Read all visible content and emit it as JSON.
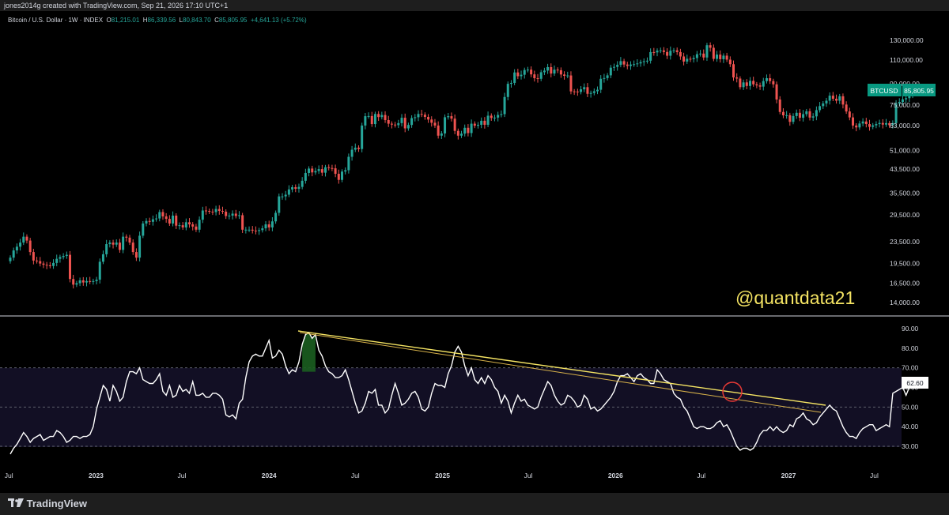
{
  "header": {
    "attribution": "jones2014g created with TradingView.com, Sep 21, 2026 17:10 UTC+1"
  },
  "symbol": {
    "title": "Bitcoin / U.S. Dollar · 1W · INDEX",
    "open_label": "O",
    "open": "81,215.01",
    "high_label": "H",
    "high": "86,339.56",
    "low_label": "L",
    "low": "80,843.70",
    "close_label": "C",
    "close": "85,805.95",
    "change": "+4,641.13 (+5.72%)"
  },
  "price_badge": {
    "symbol": "BTCUSD",
    "value": "85,805.95"
  },
  "rsi_badge": {
    "value": "62.60"
  },
  "watermark": "@quantdata21",
  "footer": {
    "brand": "TradingView"
  },
  "colors": {
    "up": "#26a69a",
    "down": "#ef5350",
    "rsi_line": "#ffffff",
    "trendline": "#f5e463",
    "circle": "#e53935",
    "badge": "#089981"
  },
  "chart_data": [
    {
      "type": "candlestick",
      "scale": "log",
      "price_ticks": [
        130000,
        110000,
        90000,
        75000,
        63000,
        51000,
        43500,
        35500,
        29500,
        23500,
        19500,
        16500,
        14000
      ],
      "price_tick_labels": [
        "130,000.00",
        "110,000.00",
        "90,000.00",
        "75,000.00",
        "63,000.00",
        "51,000.00",
        "43,500.00",
        "35,500.00",
        "29,500.00",
        "23,500.00",
        "19,500.00",
        "16,500.00",
        "14,000.00"
      ],
      "time_labels": [
        "Jul",
        "2023",
        "Jul",
        "2024",
        "Jul",
        "2025",
        "Jul",
        "2026",
        "Jul",
        "2027",
        "Jul"
      ],
      "time_label_dates": [
        "2022-07",
        "2023-01",
        "2023-07",
        "2024-01",
        "2024-07",
        "2025-01",
        "2025-07",
        "2026-01",
        "2026-07",
        "2027-01",
        "2027-07"
      ],
      "weekly_closes_from": "2022-07-04",
      "weekly_closes": [
        20500,
        21800,
        22500,
        23300,
        24500,
        23700,
        21500,
        20000,
        19900,
        19500,
        19300,
        19200,
        19100,
        19600,
        20300,
        20600,
        20800,
        21000,
        17100,
        16300,
        16500,
        16900,
        16600,
        16800,
        16700,
        16800,
        17000,
        19800,
        21100,
        23000,
        23300,
        22900,
        23300,
        21900,
        24500,
        24300,
        23300,
        21500,
        20500,
        24700,
        27400,
        28000,
        27800,
        28400,
        28600,
        30200,
        29100,
        28500,
        27400,
        29300,
        26900,
        27000,
        26500,
        27700,
        27200,
        26700,
        26000,
        28300,
        30600,
        30500,
        30300,
        30200,
        31000,
        30500,
        30300,
        29200,
        29300,
        29800,
        29200,
        29400,
        26000,
        26000,
        26000,
        25800,
        25700,
        25900,
        26300,
        27200,
        26500,
        27900,
        30000,
        34500,
        34500,
        35000,
        36600,
        37300,
        36800,
        37400,
        39400,
        42100,
        43700,
        42300,
        42800,
        43500,
        42200,
        44200,
        43900,
        43800,
        41800,
        39700,
        42600,
        43100,
        48300,
        51300,
        52200,
        51600,
        63000,
        68200,
        68300,
        63800,
        69500,
        67700,
        68900,
        66000,
        64000,
        63500,
        63200,
        64300,
        67300,
        61500,
        63300,
        67100,
        67600,
        69500,
        69100,
        67800,
        66300,
        64500,
        63000,
        57800,
        58900,
        67600,
        68200,
        66800,
        60200,
        57800,
        58800,
        61800,
        59100,
        64000,
        62900,
        63400,
        65600,
        63400,
        68500,
        67200,
        67400,
        68900,
        69400,
        80300,
        89800,
        90500,
        98900,
        95800,
        97000,
        101000,
        101300,
        97300,
        94200,
        93700,
        99100,
        100500,
        103500,
        98000,
        101300,
        100800,
        97200,
        96100,
        96400,
        84200,
        84100,
        83800,
        85700,
        87300,
        82500,
        83100,
        84300,
        85400,
        93700,
        94300,
        96500,
        103000,
        103700,
        105500,
        108900,
        105800,
        104500,
        105800,
        106100,
        106800,
        108000,
        108800,
        109300,
        117600,
        117300,
        119000,
        119300,
        117700,
        114000,
        119000,
        119400,
        117600,
        113300,
        108500,
        111100,
        110700,
        111800,
        115500,
        116100,
        112300,
        124700,
        122000,
        111000,
        115100,
        110700,
        114100,
        110300,
        106100,
        94800,
        93900,
        87300,
        90900,
        88200,
        92100,
        89400,
        88600,
        87700,
        91900,
        94200,
        91900,
        89400,
        78600,
        70700,
        68700,
        68800,
        65000,
        68300,
        70200,
        67300,
        69400,
        71100,
        67400,
        68100,
        71800,
        74300,
        76000,
        77800,
        81200,
        79100,
        77800,
        80800,
        75300,
        71000,
        67500,
        63000,
        62000,
        64100,
        65200,
        63800,
        62300,
        63100,
        63800,
        64400,
        63500,
        64300,
        63200,
        64300,
        76000,
        77000,
        78700,
        79500,
        81200,
        85806
      ]
    },
    {
      "type": "line",
      "name": "RSI",
      "y_ticks": [
        90,
        80,
        70,
        60,
        50,
        40,
        30
      ],
      "y_tick_labels": [
        "90.00",
        "80.00",
        "70.00",
        "60.00",
        "50.00",
        "40.00",
        "30.00"
      ],
      "bands": {
        "upper": 70,
        "middle": 50,
        "lower": 30
      },
      "last_value": 62.6,
      "values": [
        26,
        29,
        31,
        34,
        37,
        35,
        32,
        34,
        35,
        36,
        33,
        34,
        35,
        35,
        38,
        37,
        35,
        32,
        33,
        35,
        35,
        34,
        35,
        35,
        36,
        40,
        49,
        55,
        61,
        59,
        53,
        61,
        58,
        53,
        55,
        63,
        68,
        68,
        67,
        70,
        64,
        63,
        62,
        62,
        64,
        67,
        58,
        56,
        61,
        55,
        56,
        61,
        58,
        59,
        57,
        63,
        56,
        56,
        57,
        55,
        55,
        57,
        57,
        56,
        54,
        46,
        45,
        46,
        44,
        52,
        54,
        65,
        73,
        76,
        77,
        76,
        76,
        80,
        84,
        75,
        76,
        79,
        77,
        71,
        67,
        69,
        68,
        73,
        82,
        87,
        88,
        85,
        87,
        79,
        76,
        71,
        68,
        67,
        65,
        65,
        66,
        69,
        64,
        58,
        52,
        47,
        48,
        52,
        58,
        57,
        59,
        51,
        51,
        47,
        49,
        56,
        62,
        57,
        51,
        52,
        54,
        57,
        58,
        55,
        49,
        48,
        50,
        57,
        62,
        61,
        61,
        60,
        67,
        71,
        78,
        81,
        78,
        71,
        66,
        70,
        64,
        62,
        65,
        62,
        66,
        64,
        60,
        58,
        52,
        56,
        53,
        47,
        52,
        56,
        53,
        54,
        51,
        50,
        49,
        50,
        55,
        59,
        63,
        61,
        56,
        53,
        51,
        52,
        56,
        55,
        53,
        50,
        51,
        56,
        54,
        49,
        50,
        48,
        49,
        51,
        53,
        55,
        58,
        63,
        66,
        66,
        67,
        65,
        63,
        66,
        67,
        65,
        64,
        62,
        62,
        69,
        67,
        64,
        63,
        62,
        57,
        55,
        54,
        50,
        48,
        44,
        40,
        39,
        40,
        40,
        39,
        39,
        40,
        42,
        43,
        40,
        41,
        38,
        34,
        30,
        28,
        29,
        29,
        28,
        29,
        32,
        36,
        38,
        38,
        40,
        38,
        40,
        38,
        37,
        38,
        41,
        40,
        44,
        45,
        47,
        44,
        43,
        41,
        42,
        45,
        47,
        49,
        51,
        49,
        48,
        44,
        40,
        37,
        35,
        35,
        34,
        37,
        39,
        40,
        41,
        41,
        38,
        39,
        40,
        41,
        40,
        57,
        58,
        59,
        60,
        56,
        60,
        63
      ]
    }
  ]
}
